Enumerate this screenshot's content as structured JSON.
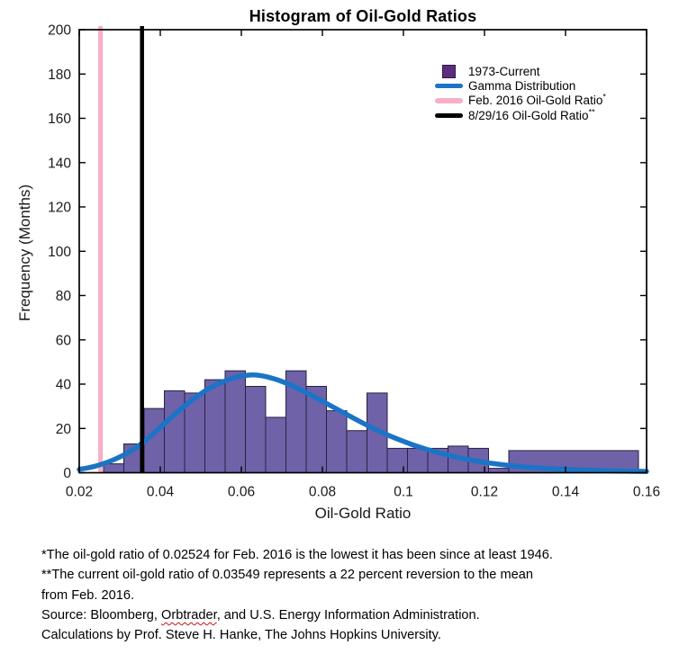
{
  "title": "Histogram of Oil-Gold Ratios",
  "chart_data": {
    "type": "bar",
    "subtype": "histogram-with-fit",
    "title": "Histogram of Oil-Gold Ratios",
    "xlabel": "Oil-Gold Ratio",
    "ylabel": "Frequency (Months)",
    "xlim": [
      0.02,
      0.16
    ],
    "ylim": [
      0,
      200
    ],
    "grid": false,
    "xtick_values": [
      0.02,
      0.04,
      0.06,
      0.08,
      0.1,
      0.12,
      0.14,
      0.16
    ],
    "xtick_labels": [
      "0.02",
      "0.04",
      "0.06",
      "0.08",
      "0.1",
      "0.12",
      "0.14",
      "0.16"
    ],
    "ytick_values": [
      0,
      20,
      40,
      60,
      80,
      100,
      120,
      140,
      160,
      180,
      200
    ],
    "ytick_labels": [
      "0",
      "20",
      "40",
      "60",
      "80",
      "100",
      "120",
      "140",
      "160",
      "180",
      "200"
    ],
    "histogram": {
      "series_name": "1973-Current",
      "fill_color": "#6f62a9",
      "edge_color": "#26223d",
      "bins": [
        {
          "x0": 0.026,
          "x1": 0.031,
          "h": 4
        },
        {
          "x0": 0.031,
          "x1": 0.036,
          "h": 13
        },
        {
          "x0": 0.036,
          "x1": 0.041,
          "h": 29
        },
        {
          "x0": 0.041,
          "x1": 0.046,
          "h": 37
        },
        {
          "x0": 0.046,
          "x1": 0.051,
          "h": 36
        },
        {
          "x0": 0.051,
          "x1": 0.056,
          "h": 42
        },
        {
          "x0": 0.056,
          "x1": 0.061,
          "h": 46
        },
        {
          "x0": 0.061,
          "x1": 0.066,
          "h": 39
        },
        {
          "x0": 0.066,
          "x1": 0.071,
          "h": 25
        },
        {
          "x0": 0.071,
          "x1": 0.076,
          "h": 46
        },
        {
          "x0": 0.076,
          "x1": 0.081,
          "h": 39
        },
        {
          "x0": 0.081,
          "x1": 0.086,
          "h": 28
        },
        {
          "x0": 0.086,
          "x1": 0.091,
          "h": 19
        },
        {
          "x0": 0.091,
          "x1": 0.096,
          "h": 36
        },
        {
          "x0": 0.096,
          "x1": 0.101,
          "h": 11
        },
        {
          "x0": 0.101,
          "x1": 0.106,
          "h": 11
        },
        {
          "x0": 0.106,
          "x1": 0.111,
          "h": 11
        },
        {
          "x0": 0.111,
          "x1": 0.116,
          "h": 12
        },
        {
          "x0": 0.116,
          "x1": 0.121,
          "h": 11
        },
        {
          "x0": 0.121,
          "x1": 0.126,
          "h": 2
        },
        {
          "x0": 0.126,
          "x1": 0.158,
          "h": 10
        }
      ]
    },
    "fit_curve": {
      "series_name": "Gamma Distribution",
      "color": "#1b74c5",
      "width": 5.5,
      "points": [
        [
          0.02,
          1.5
        ],
        [
          0.024,
          3.0
        ],
        [
          0.028,
          5.5
        ],
        [
          0.032,
          9.0
        ],
        [
          0.036,
          14.0
        ],
        [
          0.04,
          20.5
        ],
        [
          0.044,
          27.0
        ],
        [
          0.048,
          33.0
        ],
        [
          0.052,
          38.0
        ],
        [
          0.056,
          41.5
        ],
        [
          0.06,
          43.6
        ],
        [
          0.063,
          44.2
        ],
        [
          0.066,
          43.4
        ],
        [
          0.07,
          41.2
        ],
        [
          0.074,
          38.0
        ],
        [
          0.078,
          34.3
        ],
        [
          0.082,
          30.3
        ],
        [
          0.086,
          26.3
        ],
        [
          0.09,
          22.4
        ],
        [
          0.094,
          18.8
        ],
        [
          0.098,
          15.6
        ],
        [
          0.102,
          12.8
        ],
        [
          0.106,
          10.4
        ],
        [
          0.11,
          8.4
        ],
        [
          0.115,
          6.3
        ],
        [
          0.12,
          4.7
        ],
        [
          0.125,
          3.5
        ],
        [
          0.13,
          2.6
        ],
        [
          0.135,
          2.0
        ],
        [
          0.14,
          1.5
        ],
        [
          0.145,
          1.2
        ],
        [
          0.15,
          0.9
        ],
        [
          0.155,
          0.75
        ],
        [
          0.16,
          0.6
        ]
      ]
    },
    "vlines": [
      {
        "name": "feb-2016-line",
        "x": 0.02524,
        "color": "#f8aeca",
        "width": 5,
        "label": "Feb. 2016 Oil-Gold Ratio*"
      },
      {
        "name": "aug-2016-line",
        "x": 0.03549,
        "color": "#000000",
        "width": 4.5,
        "label": "8/29/16 Oil-Gold Ratio**"
      }
    ],
    "axis_color": "#000000",
    "legend_position": "upper right"
  },
  "legend": {
    "items": [
      {
        "swatch": "square",
        "color": "#5c2d7e",
        "label": "1973-Current",
        "sup": ""
      },
      {
        "swatch": "line",
        "color": "#1b74c5",
        "label": "Gamma Distribution",
        "sup": ""
      },
      {
        "swatch": "line",
        "color": "#f8aeca",
        "label": "Feb. 2016 Oil-Gold Ratio",
        "sup": "*"
      },
      {
        "swatch": "line",
        "color": "#000000",
        "label": "8/29/16 Oil-Gold Ratio",
        "sup": "**"
      }
    ]
  },
  "footnotes": {
    "line1": "*The oil-gold ratio of 0.02524 for Feb. 2016 is the lowest it has been since at least 1946.",
    "line2": "**The current oil-gold ratio of 0.03549 represents a 22 percent reversion to the mean",
    "line3": "from Feb. 2016.",
    "source_pre": "Source: Bloomberg, ",
    "source_misspelled": "Orbtrader",
    "source_post": ", and U.S. Energy Information Administration.",
    "line5": "Calculations by Prof. Steve H. Hanke, The Johns Hopkins University."
  }
}
